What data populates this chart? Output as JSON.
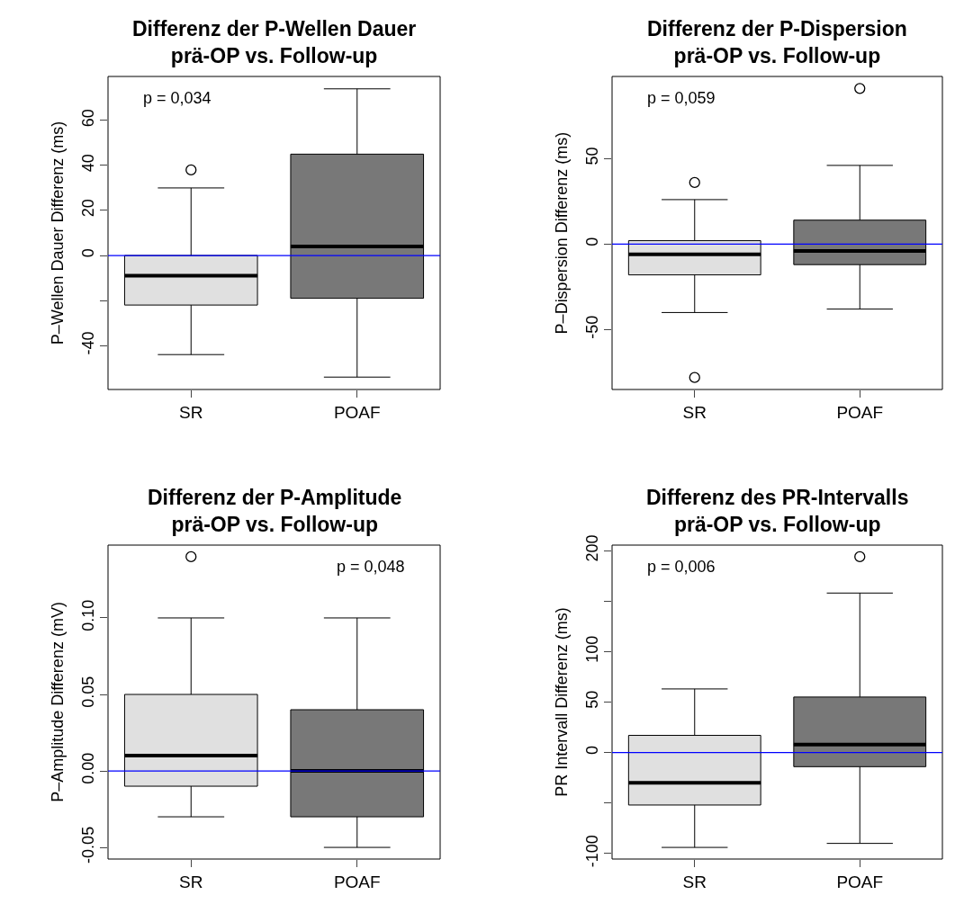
{
  "chart_data": [
    {
      "type": "box",
      "title": "Differenz der P-Wellen Dauer\nprä-OP vs. Follow-up",
      "ylabel": "P–Wellen Dauer Differenz (ms)",
      "categories": [
        "SR",
        "POAF"
      ],
      "colors": [
        "#e0e0e0",
        "#787878"
      ],
      "boxes": [
        {
          "low": -44,
          "q1": -22,
          "median": -9,
          "q3": 0,
          "high": 30,
          "outliers": [
            38
          ]
        },
        {
          "low": -54,
          "q1": -19,
          "median": 4,
          "q3": 45,
          "high": 74
        }
      ],
      "ylim": [
        -59.5,
        79.5
      ],
      "yticks": [
        -40,
        {
          "value": -20,
          "label": null
        },
        0,
        20,
        40,
        60
      ],
      "ref_lines": [
        {
          "axis": "y",
          "value": 0,
          "color": "#0000ff"
        }
      ],
      "annotations": [
        "p = 0,034"
      ],
      "grid": false
    },
    {
      "type": "box",
      "title": "Differenz der P-Dispersion\nprä-OP vs. Follow-up",
      "ylabel": "P–Dispersion Differenz (ms)",
      "categories": [
        "SR",
        "POAF"
      ],
      "colors": [
        "#e0e0e0",
        "#787878"
      ],
      "boxes": [
        {
          "low": -40,
          "q1": -18,
          "median": -6,
          "q3": 2,
          "high": 26,
          "outliers": [
            36,
            -78
          ]
        },
        {
          "low": -38,
          "q1": -12,
          "median": -4,
          "q3": 14,
          "high": 46,
          "outliers": [
            91
          ]
        }
      ],
      "ylim": [
        -85,
        98
      ],
      "yticks": [
        -50,
        0,
        50
      ],
      "ref_lines": [
        {
          "axis": "y",
          "value": 0,
          "color": "#0000ff"
        }
      ],
      "annotations": [
        "p = 0,059"
      ],
      "grid": false
    },
    {
      "type": "box",
      "title": "Differenz der P-Amplitude\nprä-OP vs. Follow-up",
      "ylabel": "P–Amplitude Differenz (mV)",
      "categories": [
        "SR",
        "POAF"
      ],
      "colors": [
        "#e0e0e0",
        "#787878"
      ],
      "boxes": [
        {
          "low": -0.03,
          "q1": -0.01,
          "median": 0.01,
          "q3": 0.05,
          "high": 0.1,
          "outliers": [
            0.14
          ]
        },
        {
          "low": -0.05,
          "q1": -0.03,
          "median": 0,
          "q3": 0.04,
          "high": 0.1
        }
      ],
      "ylim": [
        -0.0576,
        0.1476
      ],
      "yticks": [
        {
          "value": -0.05,
          "label": "-0.05"
        },
        {
          "value": 0,
          "label": "0.00"
        },
        {
          "value": 0.05,
          "label": "0.05"
        },
        {
          "value": 0.1,
          "label": "0.10"
        }
      ],
      "ref_lines": [
        {
          "axis": "y",
          "value": 0,
          "color": "#0000ff"
        }
      ],
      "annotations": [
        "p = 0,048"
      ],
      "grid": false
    },
    {
      "type": "box",
      "title": "Differenz des PR-Intervalls\nprä-OP vs. Follow-up",
      "ylabel": "PR Intervall Differenz (ms)",
      "categories": [
        "SR",
        "POAF"
      ],
      "colors": [
        "#e0e0e0",
        "#787878"
      ],
      "boxes": [
        {
          "low": -94,
          "q1": -52,
          "median": -30,
          "q3": 17,
          "high": 63
        },
        {
          "low": -90,
          "q1": -14,
          "median": 8,
          "q3": 55,
          "high": 158,
          "outliers": [
            194
          ]
        }
      ],
      "ylim": [
        -105.5,
        205.5
      ],
      "yticks": [
        -100,
        {
          "value": -50,
          "label": null
        },
        0,
        50,
        100,
        {
          "value": 150,
          "label": null
        },
        200
      ],
      "ref_lines": [
        {
          "axis": "y",
          "value": 0,
          "color": "#0000ff"
        }
      ],
      "annotations": [
        "p = 0,006"
      ],
      "grid": false
    }
  ]
}
